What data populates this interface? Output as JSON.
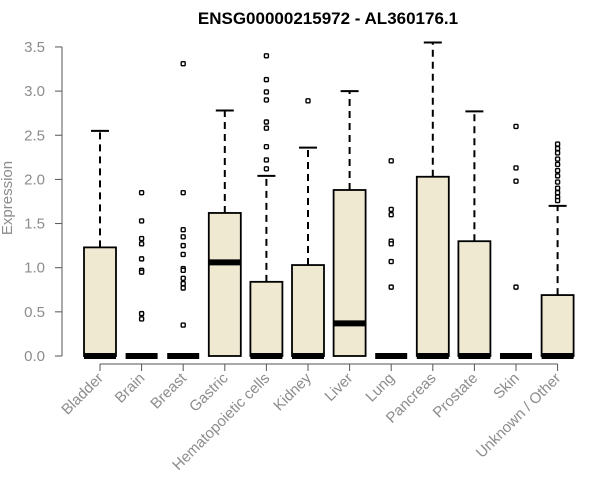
{
  "chart_data": {
    "type": "boxplot",
    "title": "ENSG00000215972 - AL360176.1",
    "xlabel": "",
    "ylabel": "Expression",
    "ylim": [
      0,
      3.6
    ],
    "yticks": [
      "0.0",
      "0.5",
      "1.0",
      "1.5",
      "2.0",
      "2.5",
      "3.0",
      "3.5"
    ],
    "grid": false,
    "legend": "none",
    "box_fill": "#efe9d2",
    "box_stroke": "#000000",
    "categories": [
      "Bladder",
      "Brain",
      "Breast",
      "Gastric",
      "Hematopoietic cells",
      "Kidney",
      "Liver",
      "Lung",
      "Pancreas",
      "Prostate",
      "Skin",
      "Unknown / Other"
    ],
    "boxes": [
      {
        "category": "Bladder",
        "q1": 0,
        "median": 0,
        "q3": 1.23,
        "whisker_low": 0,
        "whisker_high": 2.55,
        "outliers": []
      },
      {
        "category": "Brain",
        "q1": 0,
        "median": 0,
        "q3": 0,
        "whisker_low": 0,
        "whisker_high": 0,
        "outliers": [
          1.85,
          1.53,
          1.33,
          1.27,
          1.1,
          0.97,
          0.95,
          0.48,
          0.42
        ]
      },
      {
        "category": "Breast",
        "q1": 0,
        "median": 0,
        "q3": 0,
        "whisker_low": 0,
        "whisker_high": 0,
        "outliers": [
          3.31,
          1.85,
          1.43,
          1.35,
          1.25,
          1.15,
          0.99,
          0.97,
          0.88,
          0.82,
          0.77,
          0.35
        ]
      },
      {
        "category": "Gastric",
        "q1": 0,
        "median": 1.06,
        "q3": 1.62,
        "whisker_low": 0,
        "whisker_high": 2.78,
        "outliers": []
      },
      {
        "category": "Hematopoietic cells",
        "q1": 0,
        "median": 0,
        "q3": 0.84,
        "whisker_low": 0,
        "whisker_high": 2.04,
        "outliers": [
          3.4,
          3.13,
          2.99,
          2.9,
          2.65,
          2.58,
          2.37,
          2.22,
          2.12
        ]
      },
      {
        "category": "Kidney",
        "q1": 0,
        "median": 0,
        "q3": 1.03,
        "whisker_low": 0,
        "whisker_high": 2.36,
        "outliers": [
          2.89
        ]
      },
      {
        "category": "Liver",
        "q1": 0,
        "median": 0.37,
        "q3": 1.88,
        "whisker_low": 0,
        "whisker_high": 3.0,
        "outliers": []
      },
      {
        "category": "Lung",
        "q1": 0,
        "median": 0,
        "q3": 0,
        "whisker_low": 0,
        "whisker_high": 0,
        "outliers": [
          2.21,
          1.66,
          1.6,
          1.3,
          1.27,
          1.07,
          0.78
        ]
      },
      {
        "category": "Pancreas",
        "q1": 0,
        "median": 0,
        "q3": 2.03,
        "whisker_low": 0,
        "whisker_high": 3.55,
        "outliers": []
      },
      {
        "category": "Prostate",
        "q1": 0,
        "median": 0,
        "q3": 1.3,
        "whisker_low": 0,
        "whisker_high": 2.77,
        "outliers": []
      },
      {
        "category": "Skin",
        "q1": 0,
        "median": 0,
        "q3": 0,
        "whisker_low": 0,
        "whisker_high": 0,
        "outliers": [
          2.6,
          2.13,
          1.98,
          0.78
        ]
      },
      {
        "category": "Unknown / Other",
        "q1": 0,
        "median": 0,
        "q3": 0.69,
        "whisker_low": 0,
        "whisker_high": 1.7,
        "outliers": [
          2.4,
          2.35,
          2.3,
          2.23,
          2.17,
          2.1,
          2.04,
          1.97,
          1.9,
          1.85,
          1.8,
          1.76
        ]
      }
    ]
  }
}
